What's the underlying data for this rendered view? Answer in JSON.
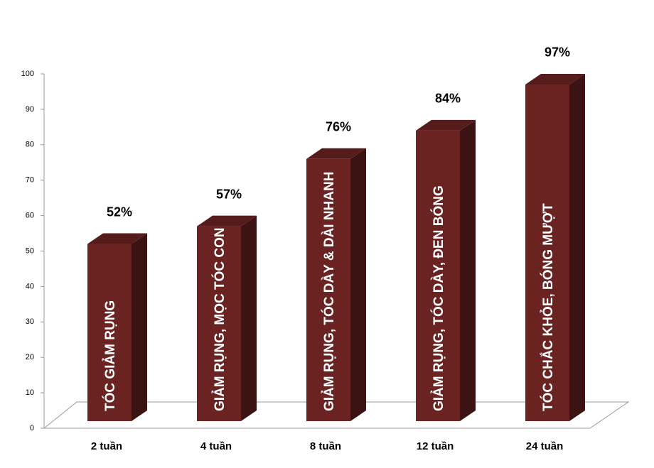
{
  "chart_data": {
    "type": "bar3d",
    "categories": [
      "2 tuần",
      "4 tuần",
      "8 tuần",
      "12 tuần",
      "24 tuần"
    ],
    "values": [
      52,
      57,
      76,
      84,
      97
    ],
    "value_labels": [
      "52%",
      "57%",
      "76%",
      "84%",
      "97%"
    ],
    "bar_texts": [
      "TÓC GIẢM RỤNG",
      "GIẢM RỤNG, MỌC TÓC CON",
      "GIẢM RỤNG, TÓC DÀY & DÀI NHANH",
      "GIẢM RỤNG, TÓC DÀY, ĐEN BÓNG",
      "TÓC CHẮC KHỎE, BÓNG MƯỢT"
    ],
    "color": "#6b2322",
    "ylim": [
      0,
      100
    ],
    "yticks": [
      0,
      10,
      20,
      30,
      40,
      50,
      60,
      70,
      80,
      90,
      100
    ]
  }
}
